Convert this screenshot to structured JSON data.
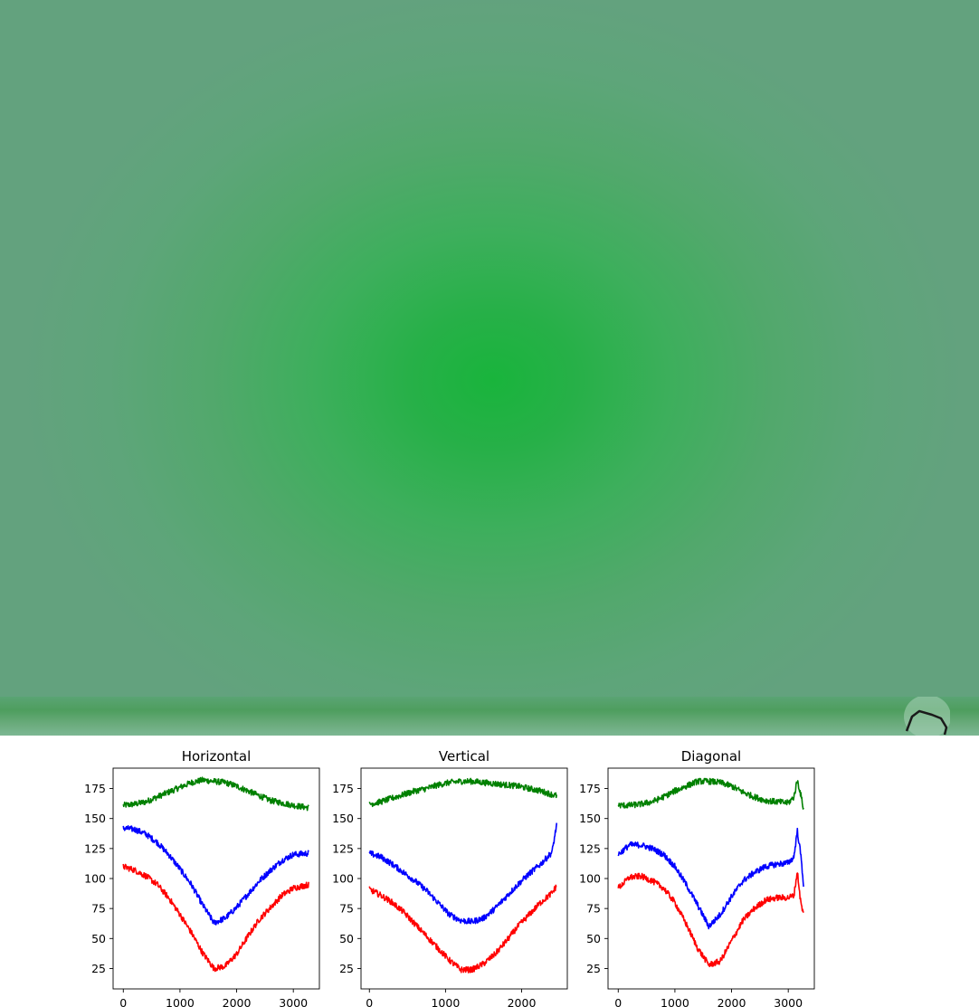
{
  "chart_data": [
    {
      "type": "line",
      "title": "Horizontal",
      "xlabel": "",
      "ylabel": "",
      "xlim": [
        -180,
        3460
      ],
      "ylim": [
        8,
        192
      ],
      "xticks": [
        0,
        1000,
        2000,
        3000
      ],
      "yticks": [
        25,
        50,
        75,
        100,
        125,
        150,
        175
      ],
      "grid": false,
      "x": [
        0,
        200,
        400,
        600,
        800,
        1000,
        1200,
        1400,
        1600,
        1800,
        2000,
        2200,
        2400,
        2600,
        2800,
        3000,
        3270
      ],
      "series": [
        {
          "color": "#008000",
          "values": [
            161,
            162,
            164,
            168,
            172,
            176,
            180,
            182,
            181,
            180,
            177,
            173,
            169,
            165,
            163,
            161,
            159
          ]
        },
        {
          "color": "#0000ff",
          "values": [
            142,
            141,
            137,
            130,
            120,
            108,
            95,
            78,
            63,
            67,
            76,
            87,
            98,
            107,
            115,
            120,
            121
          ]
        },
        {
          "color": "#ff0000",
          "values": [
            110,
            107,
            102,
            95,
            84,
            70,
            55,
            38,
            25,
            27,
            37,
            52,
            66,
            76,
            86,
            92,
            95
          ]
        }
      ]
    },
    {
      "type": "line",
      "title": "Vertical",
      "xlabel": "",
      "ylabel": "",
      "xlim": [
        -110,
        2600
      ],
      "ylim": [
        8,
        192
      ],
      "xticks": [
        0,
        1000,
        2000
      ],
      "yticks": [
        25,
        50,
        75,
        100,
        125,
        150,
        175
      ],
      "grid": false,
      "x": [
        0,
        150,
        300,
        450,
        600,
        750,
        900,
        1050,
        1200,
        1350,
        1500,
        1650,
        1800,
        1950,
        2100,
        2250,
        2400,
        2460
      ],
      "series": [
        {
          "color": "#008000",
          "values": [
            162,
            164,
            167,
            170,
            173,
            175,
            178,
            180,
            181,
            181,
            180,
            179,
            178,
            177,
            175,
            173,
            170,
            169
          ]
        },
        {
          "color": "#0000ff",
          "values": [
            121,
            118,
            112,
            105,
            98,
            90,
            80,
            70,
            65,
            64,
            67,
            75,
            85,
            95,
            104,
            112,
            122,
            145
          ]
        },
        {
          "color": "#ff0000",
          "values": [
            91,
            86,
            80,
            72,
            62,
            52,
            42,
            32,
            24,
            24,
            29,
            37,
            48,
            60,
            70,
            80,
            88,
            94
          ]
        }
      ]
    },
    {
      "type": "line",
      "title": "Diagonal",
      "xlabel": "",
      "ylabel": "",
      "xlim": [
        -180,
        3460
      ],
      "ylim": [
        8,
        192
      ],
      "xticks": [
        0,
        1000,
        2000,
        3000
      ],
      "yticks": [
        25,
        50,
        75,
        100,
        125,
        150,
        175
      ],
      "grid": false,
      "x": [
        0,
        200,
        400,
        600,
        800,
        1000,
        1200,
        1400,
        1600,
        1800,
        2000,
        2200,
        2400,
        2600,
        2800,
        3000,
        3100,
        3160,
        3220,
        3270
      ],
      "series": [
        {
          "color": "#008000",
          "values": [
            161,
            161,
            162,
            164,
            168,
            173,
            177,
            181,
            181,
            180,
            177,
            172,
            168,
            165,
            164,
            163,
            168,
            182,
            170,
            158
          ]
        },
        {
          "color": "#0000ff",
          "values": [
            120,
            128,
            128,
            125,
            120,
            110,
            95,
            78,
            60,
            70,
            85,
            98,
            105,
            110,
            112,
            113,
            118,
            140,
            120,
            95
          ]
        },
        {
          "color": "#ff0000",
          "values": [
            92,
            101,
            102,
            98,
            92,
            80,
            62,
            42,
            28,
            31,
            48,
            65,
            75,
            82,
            84,
            84,
            86,
            106,
            80,
            70
          ]
        }
      ]
    }
  ]
}
